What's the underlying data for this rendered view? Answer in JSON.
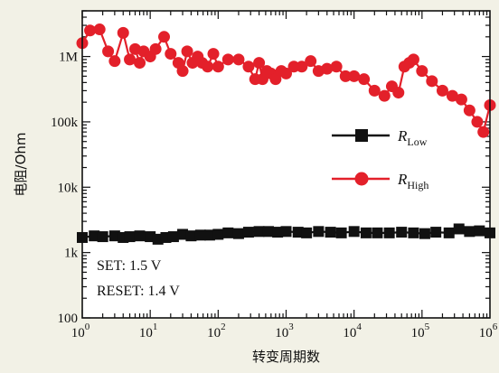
{
  "chart_data": {
    "type": "scatter",
    "xlabel": "转变周期数",
    "ylabel": "电阻/Ohm",
    "x_scale": "log",
    "y_scale": "log",
    "xlim": [
      1,
      1000000
    ],
    "ylim": [
      100,
      5000000
    ],
    "x_ticks": [
      {
        "value": 1,
        "base": "10",
        "exp": "0"
      },
      {
        "value": 10,
        "base": "10",
        "exp": "1"
      },
      {
        "value": 100,
        "base": "10",
        "exp": "2"
      },
      {
        "value": 1000,
        "base": "10",
        "exp": "3"
      },
      {
        "value": 10000,
        "base": "10",
        "exp": "4"
      },
      {
        "value": 100000,
        "base": "10",
        "exp": "5"
      },
      {
        "value": 1000000,
        "base": "10",
        "exp": "6"
      }
    ],
    "y_ticks": [
      {
        "value": 100,
        "label": "100"
      },
      {
        "value": 1000,
        "label": "1k"
      },
      {
        "value": 10000,
        "label": "10k"
      },
      {
        "value": 100000,
        "label": "100k"
      },
      {
        "value": 1000000,
        "label": "1M"
      }
    ],
    "legend": {
      "position": "right"
    },
    "annotations": [
      "SET: 1.5 V",
      "RESET: 1.4 V"
    ],
    "series": [
      {
        "name": "R",
        "subscript": "Low",
        "color": "#111111",
        "marker": "square",
        "x": [
          1,
          1.5,
          2,
          3,
          4,
          5,
          7,
          10,
          13,
          17,
          22,
          30,
          40,
          55,
          75,
          100,
          140,
          200,
          280,
          400,
          550,
          750,
          1000,
          1500,
          2000,
          3000,
          4500,
          6500,
          10000,
          15000,
          22000,
          33000,
          50000,
          75000,
          110000,
          160000,
          250000,
          350000,
          500000,
          700000,
          1000000
        ],
        "y": [
          1700,
          1800,
          1750,
          1800,
          1700,
          1750,
          1800,
          1750,
          1600,
          1700,
          1750,
          1900,
          1800,
          1850,
          1850,
          1900,
          2000,
          1950,
          2050,
          2100,
          2100,
          2050,
          2100,
          2050,
          2000,
          2100,
          2050,
          2000,
          2100,
          2000,
          2000,
          2000,
          2050,
          2000,
          1950,
          2050,
          2000,
          2300,
          2100,
          2150,
          2000
        ]
      },
      {
        "name": "R",
        "subscript": "High",
        "color": "#e3202a",
        "marker": "circle",
        "x": [
          1,
          1.3,
          1.8,
          2.4,
          3,
          4,
          5,
          6,
          7,
          8,
          10,
          12,
          16,
          20,
          26,
          30,
          35,
          42,
          50,
          58,
          70,
          85,
          100,
          140,
          200,
          280,
          350,
          400,
          450,
          520,
          600,
          700,
          850,
          1000,
          1300,
          1700,
          2300,
          3000,
          4000,
          5500,
          7500,
          10000,
          14000,
          20000,
          28000,
          36000,
          45000,
          55000,
          65000,
          75000,
          100000,
          140000,
          200000,
          280000,
          380000,
          500000,
          650000,
          800000,
          1000000
        ],
        "y": [
          1600000,
          2500000,
          2600000,
          1200000,
          850000,
          2300000,
          900000,
          1300000,
          800000,
          1200000,
          1000000,
          1300000,
          2000000,
          1100000,
          800000,
          600000,
          1200000,
          800000,
          1000000,
          800000,
          700000,
          1100000,
          700000,
          900000,
          900000,
          700000,
          450000,
          800000,
          450000,
          600000,
          550000,
          450000,
          600000,
          550000,
          700000,
          700000,
          850000,
          600000,
          650000,
          700000,
          500000,
          500000,
          450000,
          300000,
          250000,
          350000,
          280000,
          700000,
          800000,
          900000,
          600000,
          420000,
          300000,
          250000,
          220000,
          150000,
          100000,
          70000,
          180000
        ]
      }
    ]
  }
}
